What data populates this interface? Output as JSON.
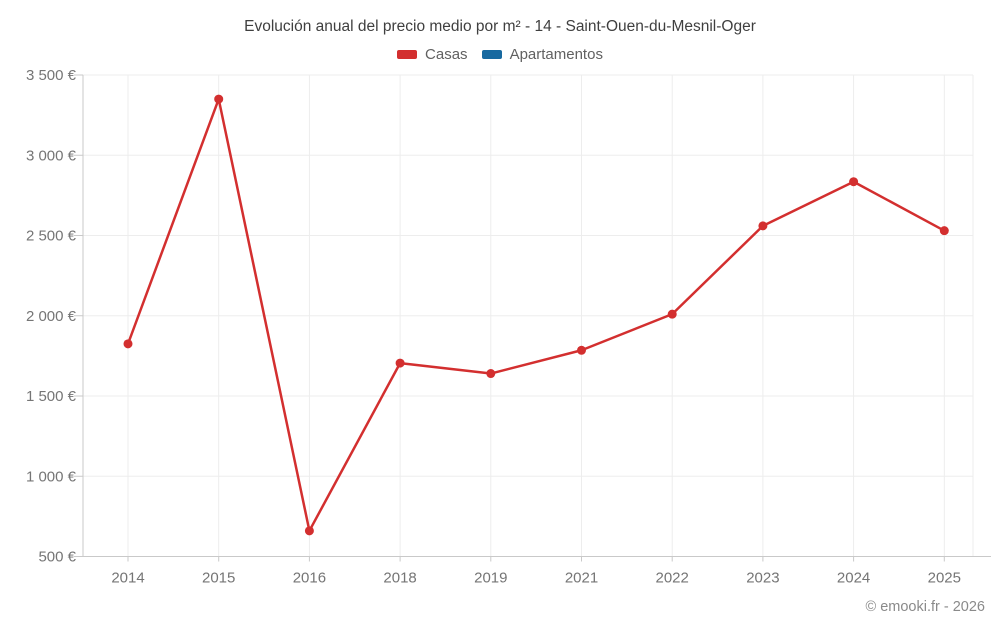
{
  "chart": {
    "title": "Evolución anual del precio medio por m² - 14 - Saint-Ouen-du-Mesnil-Oger",
    "footer": "© emooki.fr - 2026",
    "legend": [
      {
        "label": "Casas",
        "color": "#d32f2f"
      },
      {
        "label": "Apartamentos",
        "color": "#1769a0"
      }
    ]
  },
  "chart_data": {
    "type": "line",
    "title": "Evolución anual del precio medio por m² - 14 - Saint-Ouen-du-Mesnil-Oger",
    "categories": [
      "2014",
      "2015",
      "2016",
      "2018",
      "2019",
      "2021",
      "2022",
      "2023",
      "2024",
      "2025"
    ],
    "series": [
      {
        "name": "Casas",
        "color": "#d32f2f",
        "values": [
          1825,
          3350,
          660,
          1705,
          1640,
          1785,
          2010,
          2560,
          2835,
          2530
        ]
      },
      {
        "name": "Apartamentos",
        "color": "#1769a0",
        "values": []
      }
    ],
    "xlabel": "",
    "ylabel": "",
    "ylim": [
      500,
      3500
    ],
    "y_tick_values": [
      3500,
      3000,
      2500,
      2000,
      1500,
      1000,
      500
    ],
    "y_tick_labels": [
      "3 500 €",
      "3 000 €",
      "2 500 €",
      "2 000 €",
      "1 500 €",
      "1 000 €",
      "500 €"
    ],
    "currency": "€",
    "grid": true,
    "legend_position": "top"
  }
}
